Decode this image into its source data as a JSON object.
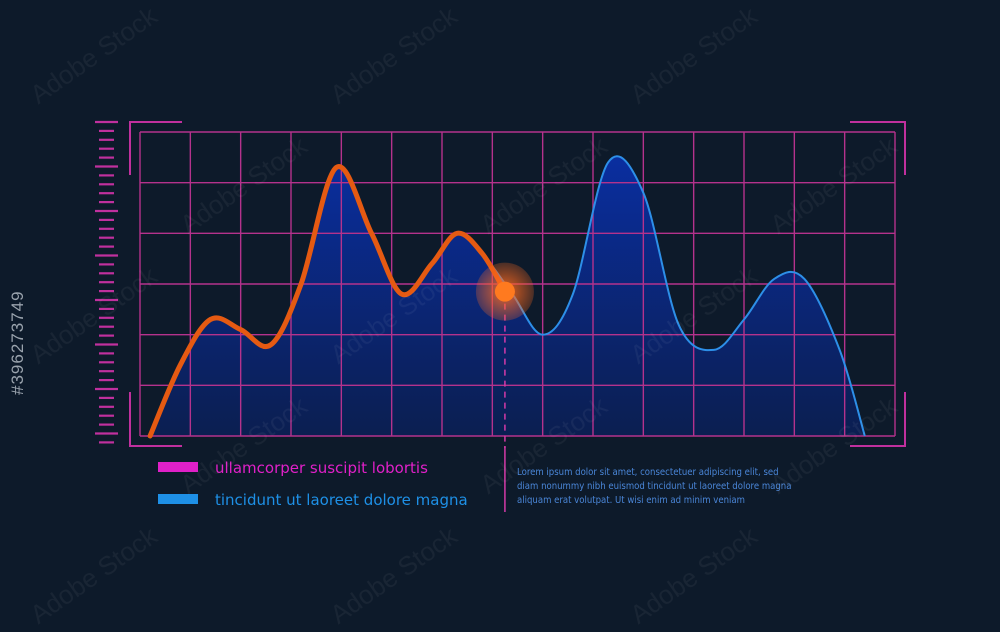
{
  "stock_id": "#396273749",
  "watermark": "Adobe Stock",
  "legend": [
    {
      "label": "ullamcorper suscipit lobortis",
      "color": "#e020c8"
    },
    {
      "label": "tincidunt ut laoreet dolore magna",
      "color": "#1e90e6"
    }
  ],
  "description": [
    "Lorem ipsum dolor sit amet, consectetuer adipiscing elit, sed",
    "diam nonummy nibh euismod tincidunt ut laoreet dolore magna",
    "aliquam erat volutpat. Ut wisi enim ad minim veniam"
  ],
  "colors": {
    "background": "#0d1a2a",
    "grid": "#b4328c",
    "frame": "#c0309e",
    "area_top": "#0a2fa6",
    "area_bottom": "#0b1f55",
    "series_blue": "#2d8fe8",
    "series_orange": "#e55a12",
    "marker": "#ff7a1f"
  },
  "chart_data": {
    "type": "area",
    "grid": true,
    "grid_columns": 15,
    "grid_rows": 6,
    "xlim": [
      0,
      15
    ],
    "ylim": [
      0,
      6
    ],
    "series": [
      {
        "x": [
          0.2,
          0.8,
          1.4,
          2,
          2.6,
          3.2,
          3.9,
          4.6,
          5.2,
          5.8,
          6.3,
          6.8,
          7.4,
          8.0,
          8.6,
          9.3,
          10.0,
          10.7,
          11.4,
          12.0,
          12.6,
          13.2,
          13.9,
          14.4
        ],
        "y": [
          0.0,
          1.4,
          2.3,
          2.1,
          1.8,
          3.0,
          5.3,
          4.0,
          2.8,
          3.4,
          4.0,
          3.6,
          2.8,
          2.0,
          2.8,
          5.4,
          4.8,
          2.2,
          1.7,
          2.3,
          3.1,
          3.1,
          1.7,
          0.0
        ],
        "color": "#2d8fe8"
      }
    ],
    "highlight_x": 7.25,
    "highlight_y": 2.85
  }
}
